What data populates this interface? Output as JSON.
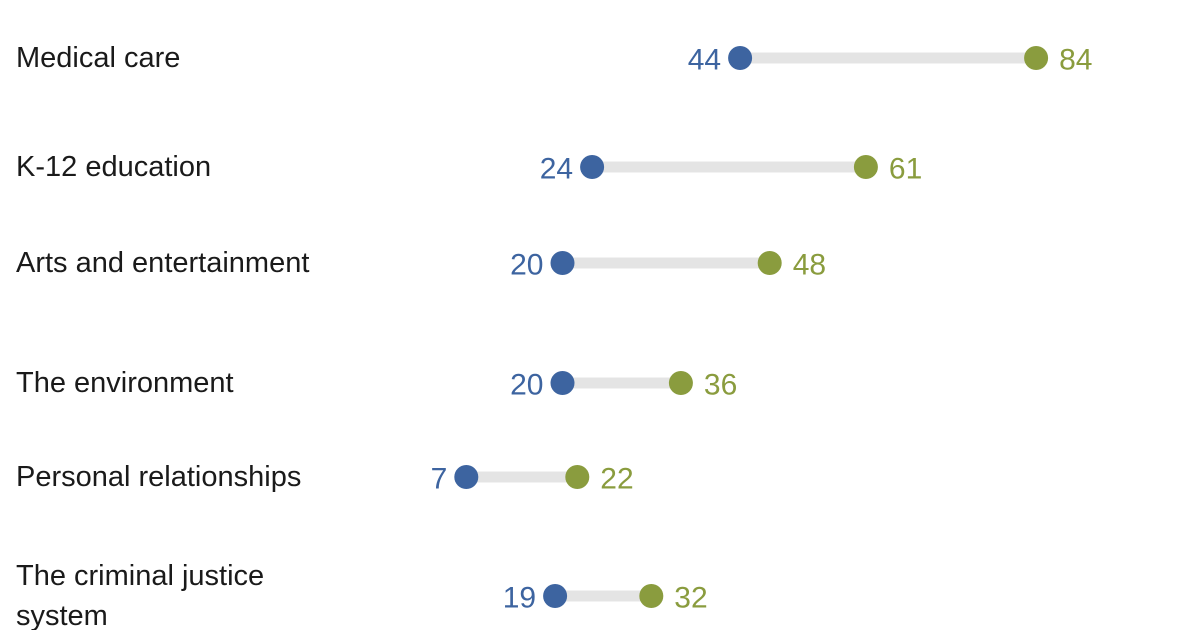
{
  "chart_data": {
    "type": "dot",
    "rows": [
      {
        "label": [
          "Medical care"
        ],
        "low": 44,
        "high": 84
      },
      {
        "label": [
          "K-12 education"
        ],
        "low": 24,
        "high": 61
      },
      {
        "label": [
          "Arts and entertainment"
        ],
        "low": 20,
        "high": 48
      },
      {
        "label": [
          "The environment"
        ],
        "low": 20,
        "high": 36
      },
      {
        "label": [
          "Personal relationships"
        ],
        "low": 7,
        "high": 22
      },
      {
        "label": [
          "The criminal justice",
          "system"
        ],
        "low": 19,
        "high": 32
      }
    ],
    "colors": {
      "low": "#3d64a0",
      "high": "#8a9c3e",
      "connector": "#e4e4e4"
    },
    "grid": false,
    "legend": "none"
  }
}
